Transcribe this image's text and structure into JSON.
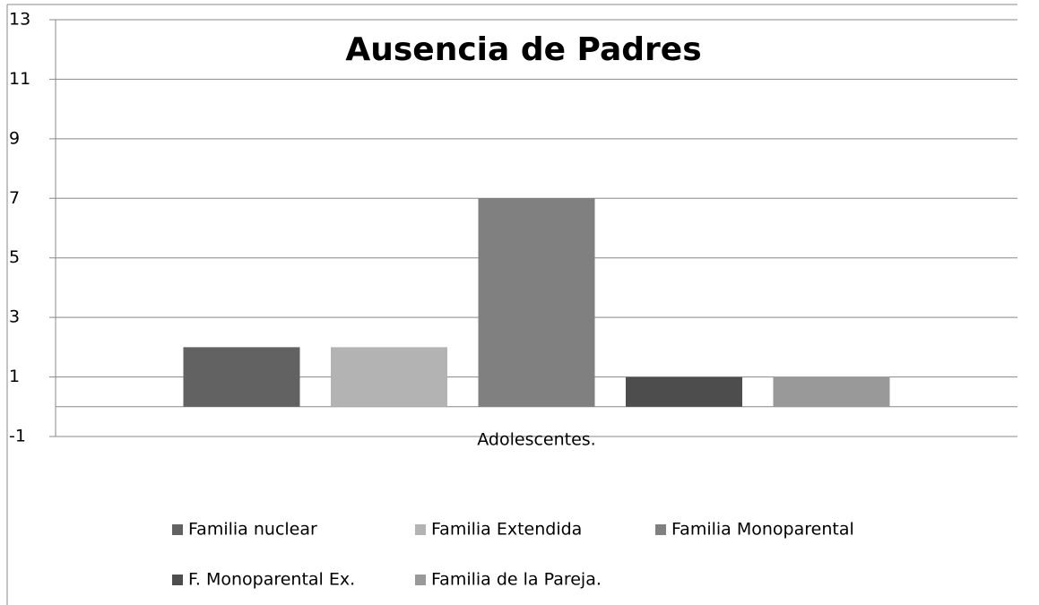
{
  "chart_data": {
    "type": "bar",
    "title": "Ausencia de Padres",
    "categories": [
      "Adolescentes."
    ],
    "series": [
      {
        "name": "Familia nuclear",
        "color": "#626262",
        "values": [
          2
        ]
      },
      {
        "name": "Familia Extendida",
        "color": "#b3b3b3",
        "values": [
          2
        ]
      },
      {
        "name": "Familia Monoparental",
        "color": "#808080",
        "values": [
          7
        ]
      },
      {
        "name": "F. Monoparental Ex.",
        "color": "#4d4d4d",
        "values": [
          1
        ]
      },
      {
        "name": "Familia de la Pareja.",
        "color": "#999999",
        "values": [
          1
        ]
      }
    ],
    "ylim": [
      -1,
      13
    ],
    "yticks": [
      -1,
      1,
      3,
      5,
      7,
      9,
      11,
      13
    ],
    "grid": true,
    "legend": "bottom"
  }
}
